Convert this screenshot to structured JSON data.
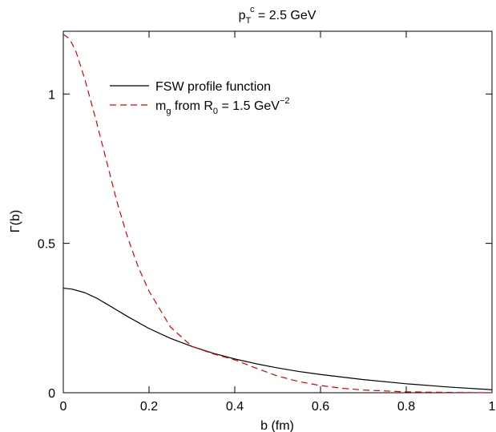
{
  "chart_data": {
    "type": "line",
    "title_parts": {
      "base": "p",
      "sub": "T",
      "sup": "c",
      "rest": " =  2.5 GeV"
    },
    "xlabel": "b (fm)",
    "ylabel": "Γ(b)",
    "xlim": [
      0,
      1
    ],
    "ylim": [
      0,
      1.21
    ],
    "xticks": [
      0,
      0.2,
      0.4,
      0.6,
      0.8,
      1
    ],
    "xtick_labels": [
      "0",
      "0.2",
      "0.4",
      "0.6",
      "0.8",
      "1"
    ],
    "yticks": [
      0,
      0.5,
      1
    ],
    "ytick_labels": [
      "0",
      "0.5",
      "1"
    ],
    "grid": false,
    "legend_position": "top-center",
    "legend": {
      "fsw_label": "FSW profile function",
      "mg_parts": {
        "a": "m",
        "a_sub": "g",
        "b": " from R",
        "b_sub": "0",
        "c": " = 1.5 GeV",
        "c_sup": "−2"
      }
    },
    "series": [
      {
        "name": "FSW profile function",
        "color": "#000000",
        "dash": "solid",
        "x": [
          0,
          0.02,
          0.05,
          0.08,
          0.1,
          0.15,
          0.2,
          0.25,
          0.3,
          0.35,
          0.4,
          0.45,
          0.5,
          0.55,
          0.6,
          0.7,
          0.8,
          0.9,
          1.0
        ],
        "y": [
          0.35,
          0.347,
          0.335,
          0.315,
          0.298,
          0.255,
          0.215,
          0.182,
          0.155,
          0.132,
          0.113,
          0.097,
          0.083,
          0.071,
          0.061,
          0.044,
          0.03,
          0.019,
          0.01
        ]
      },
      {
        "name": "m_g from R_0 = 1.5 GeV^-2",
        "color": "#dd0000",
        "dash": "dashed",
        "x": [
          0,
          0.01,
          0.02,
          0.03,
          0.05,
          0.075,
          0.1,
          0.125,
          0.15,
          0.175,
          0.2,
          0.25,
          0.3,
          0.35,
          0.4,
          0.45,
          0.5,
          0.55,
          0.6,
          0.65,
          0.7,
          0.8,
          0.9,
          1.0
        ],
        "y": [
          1.2,
          1.19,
          1.17,
          1.14,
          1.05,
          0.92,
          0.78,
          0.64,
          0.52,
          0.42,
          0.34,
          0.22,
          0.155,
          0.13,
          0.11,
          0.082,
          0.056,
          0.037,
          0.024,
          0.015,
          0.009,
          0.003,
          0.001,
          0.0
        ]
      }
    ]
  }
}
